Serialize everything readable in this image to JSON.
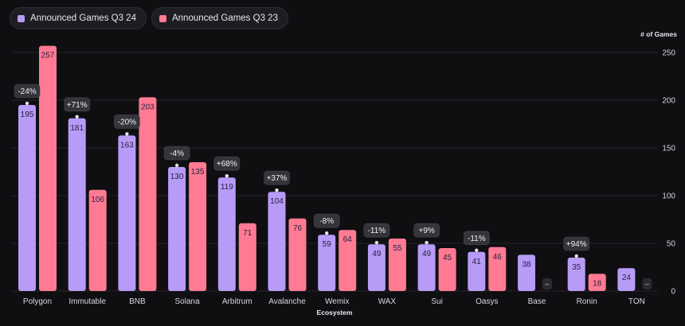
{
  "legend": {
    "items": [
      {
        "label": "Announced Games Q3 24",
        "color": "#b79bf7"
      },
      {
        "label": "Announced Games Q3 23",
        "color": "#ff7a92"
      }
    ]
  },
  "chart_data": {
    "type": "bar",
    "xlabel": "Ecosystem",
    "ylabel": "# of Games",
    "ylim": [
      0,
      250
    ],
    "yticks": [
      0,
      50,
      100,
      150,
      200,
      250
    ],
    "grid": true,
    "legend_position": "top-left",
    "categories": [
      "Polygon",
      "Immutable",
      "BNB",
      "Solana",
      "Arbitrum",
      "Avalanche",
      "Wemix",
      "WAX",
      "Sui",
      "Oasys",
      "Base",
      "Ronin",
      "TON"
    ],
    "series": [
      {
        "name": "Announced Games Q3 24",
        "color": "#b79bf7",
        "values": [
          195,
          181,
          163,
          130,
          119,
          104,
          59,
          49,
          49,
          41,
          38,
          35,
          24
        ]
      },
      {
        "name": "Announced Games Q3 23",
        "color": "#ff7a92",
        "values": [
          257,
          106,
          203,
          135,
          71,
          76,
          64,
          55,
          45,
          46,
          null,
          18,
          null
        ]
      }
    ],
    "missing_label": "–",
    "annotations": [
      "-24%",
      "+71%",
      "-20%",
      "-4%",
      "+68%",
      "+37%",
      "-8%",
      "-11%",
      "+9%",
      "-11%",
      null,
      "+94%",
      null
    ]
  }
}
